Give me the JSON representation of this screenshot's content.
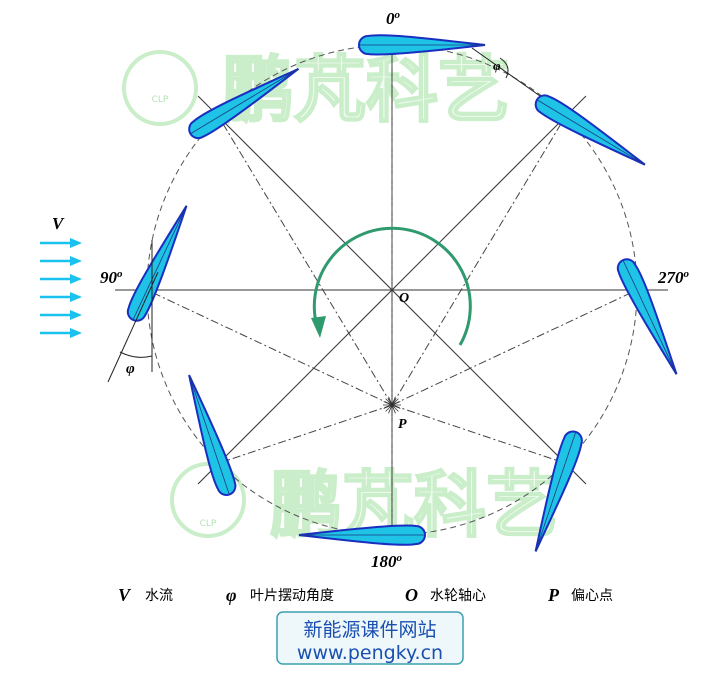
{
  "angles": [
    {
      "text": "0",
      "sup": "o"
    },
    {
      "text": "90",
      "sup": "o"
    },
    {
      "text": "180",
      "sup": "o"
    },
    {
      "text": "270",
      "sup": "o"
    }
  ],
  "flow_label": "V",
  "phi_labels": [
    "φ",
    "φ"
  ],
  "center_label": "O",
  "eccentric_label": "P",
  "legend": [
    {
      "symbol": "V",
      "text": "水流"
    },
    {
      "symbol": "φ",
      "text": "叶片摆动角度"
    },
    {
      "symbol": "O",
      "text": "水轮轴心"
    },
    {
      "symbol": "P",
      "text": "偏心点"
    }
  ],
  "watermark": {
    "text": "鹏芃科艺",
    "badge": "CLP"
  },
  "footer": {
    "title": "新能源课件网站",
    "url": "www.pengky.cn"
  }
}
